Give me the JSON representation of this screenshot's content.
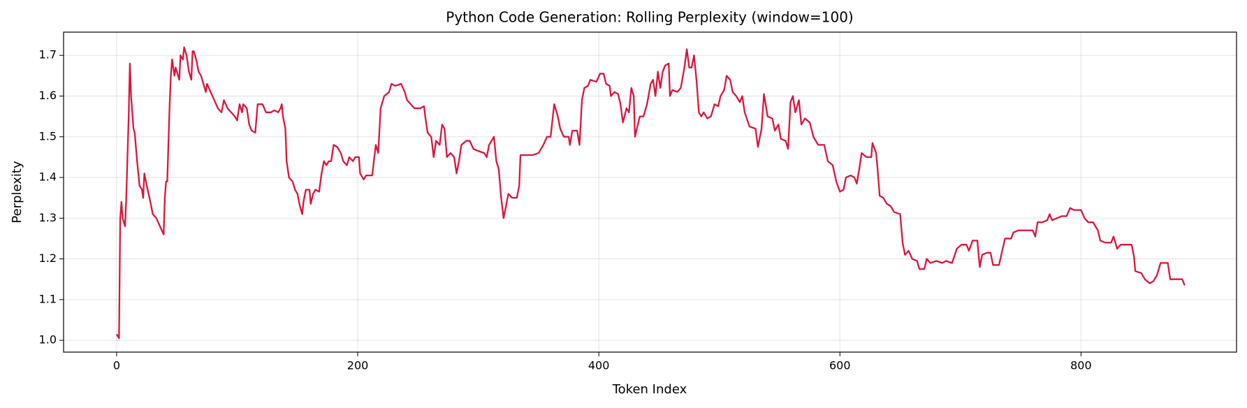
{
  "chart_data": {
    "type": "line",
    "title": "Python Code Generation: Rolling Perplexity (window=100)",
    "x_label": "Token Index",
    "y_label": "Perplexity",
    "color": "#dc143c",
    "grid": true,
    "xlim": [
      -44,
      929
    ],
    "ylim": [
      0.971,
      1.757
    ],
    "xticks": [
      0,
      200,
      400,
      600,
      800
    ],
    "yticks": [
      {
        "value": 1.0,
        "label": "1.0"
      },
      1.1,
      1.2,
      1.3,
      1.4,
      1.5,
      1.6,
      1.7
    ],
    "x": [
      0,
      2,
      3,
      4,
      5,
      7,
      8,
      10,
      11,
      12,
      14,
      15,
      17,
      19,
      21,
      22,
      23,
      25,
      28,
      30,
      33,
      36,
      39,
      40,
      41,
      42,
      44,
      45,
      46,
      47,
      48,
      49,
      51,
      52,
      53,
      55,
      56,
      58,
      60,
      62,
      63,
      64,
      66,
      68,
      70,
      72,
      74,
      75,
      78,
      81,
      84,
      87,
      89,
      92,
      95,
      98,
      100,
      102,
      104,
      105,
      108,
      110,
      112,
      115,
      117,
      121,
      124,
      128,
      131,
      134,
      136,
      137,
      138,
      140,
      141,
      143,
      146,
      148,
      150,
      152,
      154,
      155,
      157,
      160,
      161,
      163,
      165,
      168,
      170,
      172,
      174,
      176,
      178,
      180,
      183,
      186,
      188,
      191,
      193,
      196,
      198,
      201,
      202,
      205,
      207,
      212,
      215,
      217,
      219,
      222,
      226,
      228,
      231,
      236,
      239,
      241,
      244,
      247,
      252,
      255,
      256,
      258,
      261,
      263,
      265,
      268,
      270,
      272,
      274,
      277,
      280,
      282,
      284,
      286,
      290,
      293,
      296,
      300,
      305,
      307,
      309,
      313,
      315,
      317,
      319,
      321,
      323,
      325,
      328,
      332,
      334,
      335,
      340,
      345,
      350,
      354,
      357,
      360,
      363,
      366,
      368,
      371,
      375,
      376,
      378,
      382,
      384,
      386,
      388,
      391,
      393,
      398,
      401,
      404,
      406,
      409,
      410,
      413,
      416,
      418,
      420,
      423,
      425,
      427,
      429,
      430,
      434,
      437,
      440,
      443,
      445,
      447,
      449,
      451,
      453,
      455,
      458,
      459,
      461,
      465,
      468,
      471,
      473,
      475,
      477,
      479,
      481,
      483,
      485,
      487,
      490,
      493,
      496,
      499,
      501,
      504,
      506,
      509,
      511,
      514,
      517,
      519,
      521,
      525,
      530,
      532,
      535,
      537,
      540,
      544,
      546,
      549,
      551,
      555,
      557,
      559,
      561,
      563,
      566,
      568,
      571,
      575,
      578,
      582,
      587,
      590,
      594,
      597,
      600,
      603,
      605,
      609,
      612,
      614,
      616,
      618,
      622,
      626,
      627,
      630,
      631,
      633,
      636,
      639,
      642,
      645,
      650,
      652,
      654,
      657,
      660,
      664,
      666,
      670,
      672,
      675,
      680,
      685,
      688,
      693,
      697,
      701,
      705,
      707,
      710,
      714,
      716,
      718,
      722,
      725,
      727,
      732,
      735,
      737,
      742,
      744,
      748,
      750,
      760,
      762,
      764,
      768,
      772,
      774,
      776,
      780,
      784,
      788,
      791,
      794,
      800,
      803,
      806,
      810,
      814,
      816,
      820,
      825,
      827,
      830,
      833,
      842,
      844,
      845,
      850,
      853,
      857,
      860,
      863,
      866,
      872,
      874,
      878,
      884,
      886
    ],
    "values": [
      1.015,
      1.005,
      1.3,
      1.34,
      1.3,
      1.28,
      1.35,
      1.55,
      1.68,
      1.6,
      1.52,
      1.51,
      1.44,
      1.38,
      1.37,
      1.35,
      1.41,
      1.38,
      1.34,
      1.31,
      1.3,
      1.28,
      1.26,
      1.35,
      1.39,
      1.39,
      1.58,
      1.65,
      1.69,
      1.67,
      1.65,
      1.67,
      1.65,
      1.64,
      1.7,
      1.69,
      1.72,
      1.7,
      1.66,
      1.64,
      1.71,
      1.71,
      1.69,
      1.66,
      1.65,
      1.63,
      1.61,
      1.63,
      1.61,
      1.59,
      1.57,
      1.56,
      1.59,
      1.57,
      1.56,
      1.55,
      1.54,
      1.58,
      1.56,
      1.58,
      1.57,
      1.53,
      1.515,
      1.51,
      1.58,
      1.58,
      1.56,
      1.56,
      1.565,
      1.56,
      1.57,
      1.58,
      1.55,
      1.52,
      1.44,
      1.4,
      1.39,
      1.37,
      1.36,
      1.33,
      1.31,
      1.34,
      1.37,
      1.37,
      1.335,
      1.36,
      1.37,
      1.365,
      1.41,
      1.44,
      1.43,
      1.44,
      1.44,
      1.48,
      1.475,
      1.46,
      1.44,
      1.43,
      1.45,
      1.44,
      1.45,
      1.45,
      1.41,
      1.395,
      1.405,
      1.405,
      1.48,
      1.46,
      1.57,
      1.6,
      1.61,
      1.63,
      1.625,
      1.63,
      1.61,
      1.59,
      1.58,
      1.57,
      1.57,
      1.575,
      1.55,
      1.51,
      1.5,
      1.45,
      1.49,
      1.48,
      1.53,
      1.52,
      1.45,
      1.46,
      1.45,
      1.41,
      1.44,
      1.48,
      1.49,
      1.49,
      1.47,
      1.465,
      1.46,
      1.45,
      1.48,
      1.5,
      1.44,
      1.42,
      1.35,
      1.3,
      1.33,
      1.36,
      1.35,
      1.35,
      1.38,
      1.455,
      1.455,
      1.455,
      1.46,
      1.48,
      1.5,
      1.5,
      1.58,
      1.55,
      1.52,
      1.5,
      1.5,
      1.48,
      1.515,
      1.515,
      1.48,
      1.59,
      1.62,
      1.625,
      1.64,
      1.635,
      1.655,
      1.655,
      1.63,
      1.625,
      1.6,
      1.61,
      1.605,
      1.58,
      1.535,
      1.57,
      1.56,
      1.62,
      1.6,
      1.5,
      1.55,
      1.55,
      1.58,
      1.63,
      1.64,
      1.6,
      1.66,
      1.62,
      1.66,
      1.675,
      1.68,
      1.6,
      1.615,
      1.61,
      1.62,
      1.67,
      1.715,
      1.67,
      1.67,
      1.7,
      1.64,
      1.56,
      1.55,
      1.56,
      1.545,
      1.55,
      1.58,
      1.575,
      1.6,
      1.615,
      1.65,
      1.64,
      1.61,
      1.6,
      1.585,
      1.6,
      1.56,
      1.525,
      1.52,
      1.475,
      1.52,
      1.605,
      1.55,
      1.545,
      1.515,
      1.53,
      1.495,
      1.49,
      1.47,
      1.585,
      1.6,
      1.56,
      1.59,
      1.53,
      1.545,
      1.535,
      1.5,
      1.48,
      1.48,
      1.44,
      1.43,
      1.39,
      1.365,
      1.37,
      1.4,
      1.405,
      1.4,
      1.385,
      1.42,
      1.46,
      1.45,
      1.45,
      1.485,
      1.46,
      1.43,
      1.355,
      1.35,
      1.335,
      1.33,
      1.315,
      1.31,
      1.24,
      1.21,
      1.22,
      1.2,
      1.195,
      1.175,
      1.175,
      1.2,
      1.19,
      1.195,
      1.19,
      1.195,
      1.19,
      1.225,
      1.235,
      1.235,
      1.22,
      1.245,
      1.245,
      1.18,
      1.21,
      1.215,
      1.215,
      1.185,
      1.185,
      1.225,
      1.25,
      1.25,
      1.265,
      1.27,
      1.27,
      1.27,
      1.255,
      1.29,
      1.29,
      1.295,
      1.31,
      1.295,
      1.3,
      1.305,
      1.305,
      1.325,
      1.32,
      1.32,
      1.3,
      1.29,
      1.29,
      1.27,
      1.245,
      1.24,
      1.24,
      1.255,
      1.225,
      1.235,
      1.235,
      1.205,
      1.17,
      1.165,
      1.15,
      1.14,
      1.145,
      1.16,
      1.19,
      1.19,
      1.15,
      1.15,
      1.15,
      1.135
    ]
  }
}
